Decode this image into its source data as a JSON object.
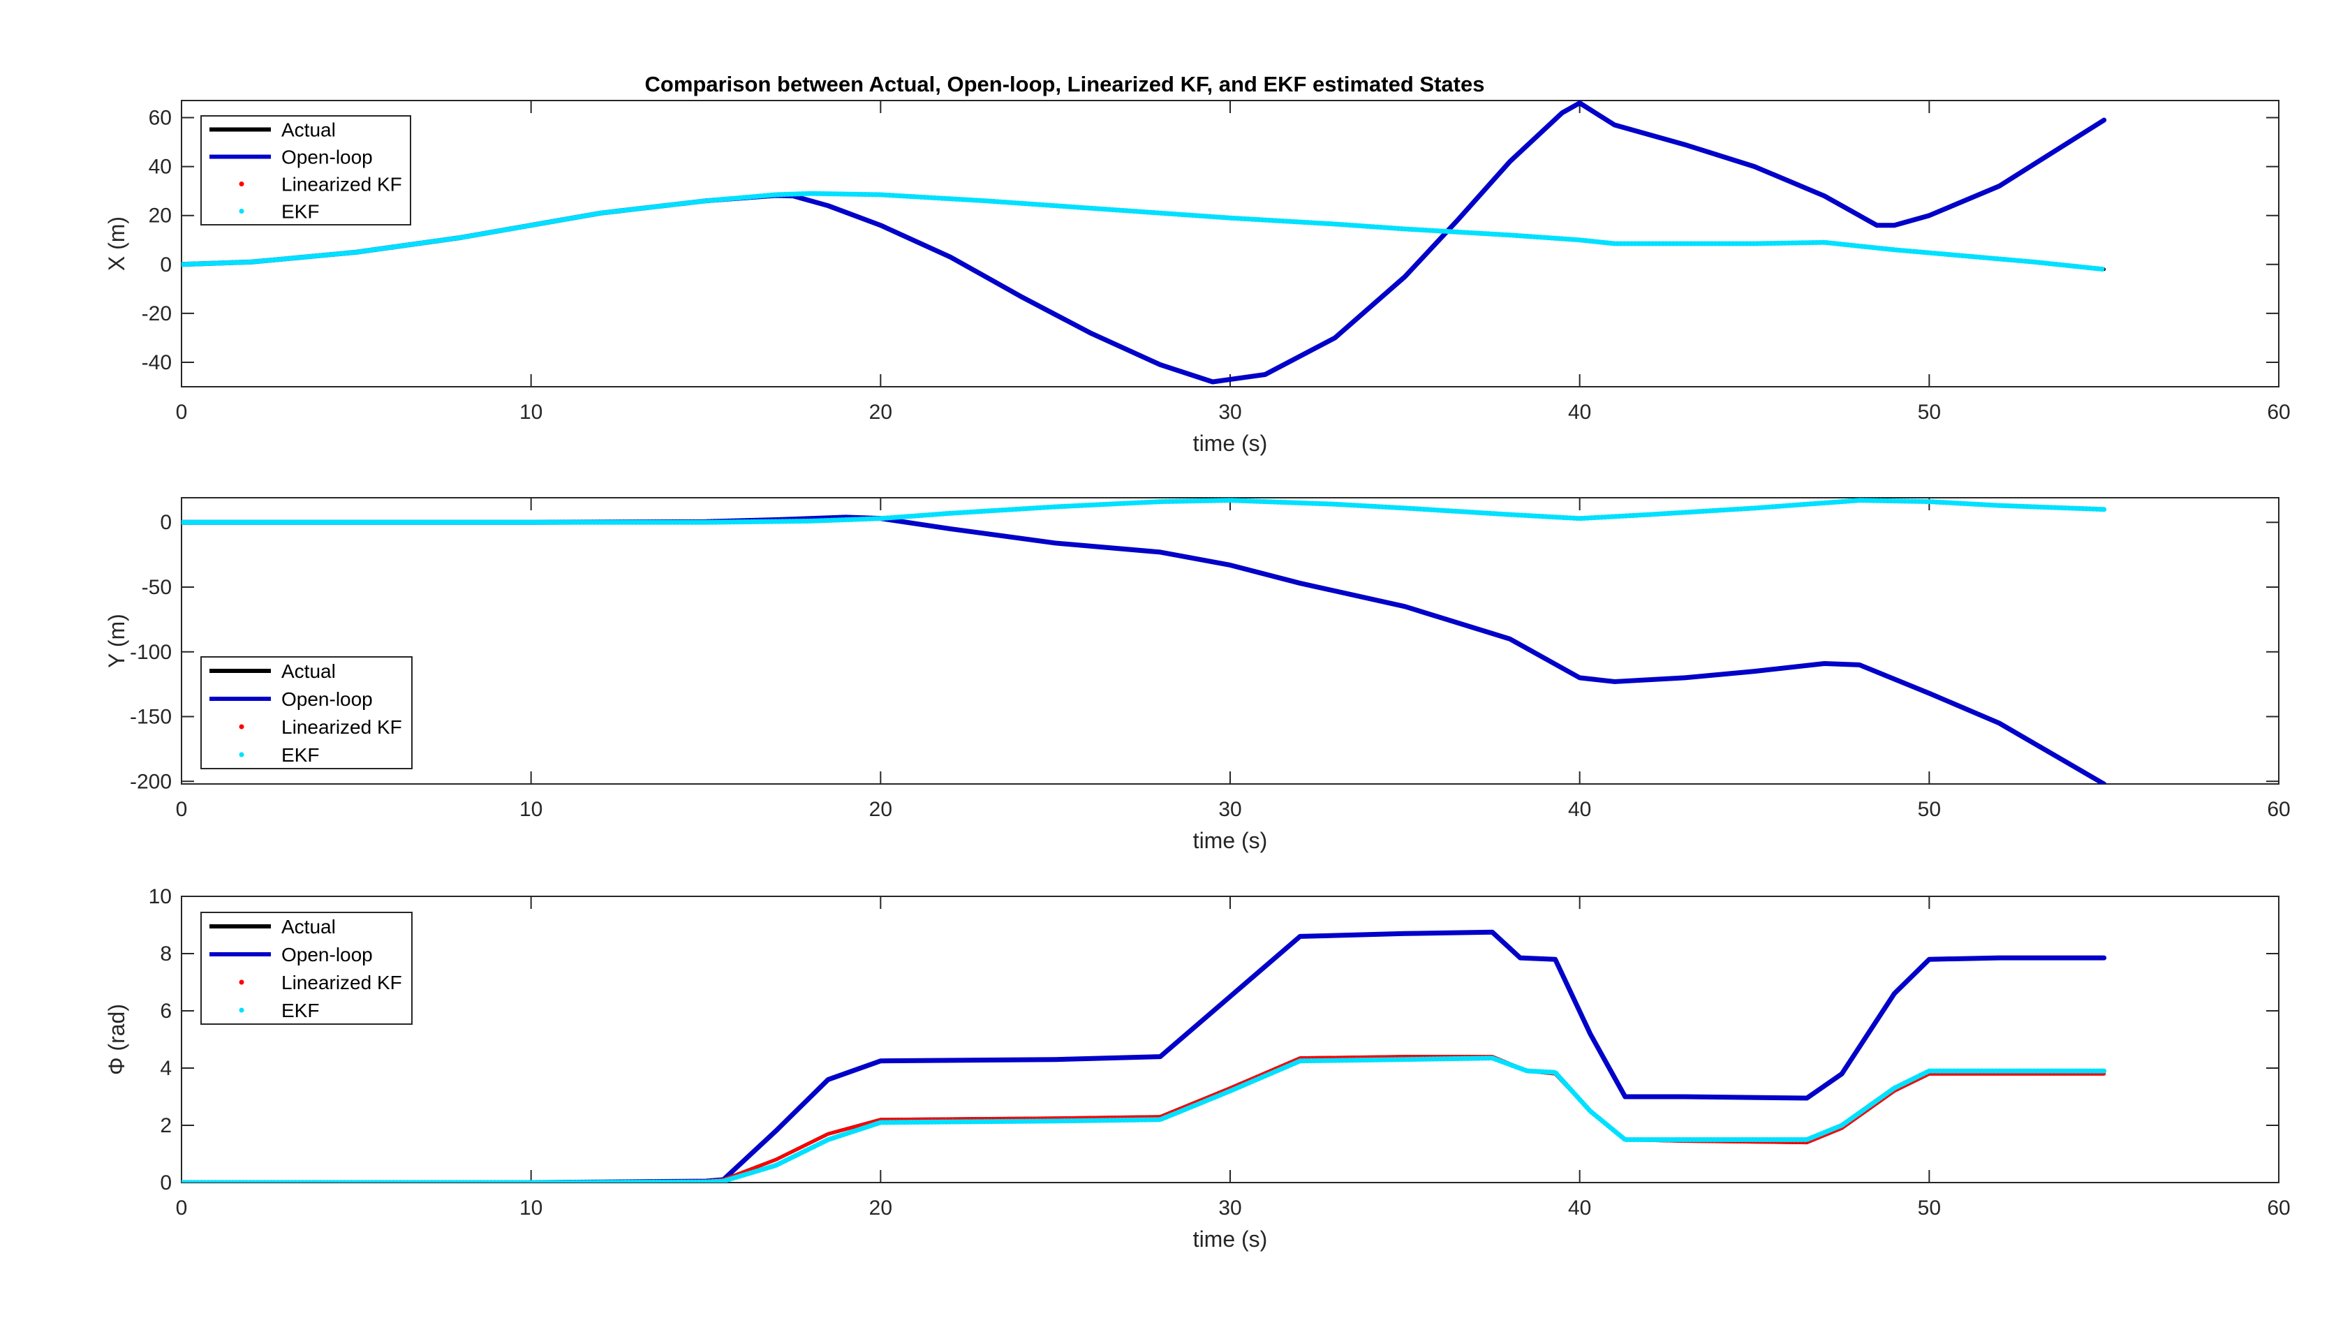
{
  "figure_title": "Comparison between Actual, Open-loop, Linearized KF, and EKF estimated States",
  "colors": {
    "actual": "#000000",
    "open_loop": "#0000c8",
    "linearized_kf": "#ff0000",
    "ekf": "#00e0ff",
    "axes": "#262626"
  },
  "chart_data": [
    {
      "type": "line",
      "title": "Comparison between Actual, Open-loop, Linearized KF, and EKF estimated States",
      "xlabel": "time (s)",
      "ylabel": "X (m)",
      "xlim": [
        0,
        60
      ],
      "ylim": [
        -50,
        67
      ],
      "xticks": [
        0,
        10,
        20,
        30,
        40,
        50,
        60
      ],
      "yticks": [
        -40,
        -20,
        0,
        20,
        40,
        60
      ],
      "legend": {
        "placement": "top-left",
        "entries": [
          "Actual",
          "Open-loop",
          "Linearized KF",
          "EKF"
        ]
      },
      "grid": false,
      "series": [
        {
          "name": "Actual",
          "style": "line",
          "color": "#000000",
          "x": [
            0,
            2,
            5,
            8,
            10,
            12,
            15,
            17,
            18,
            20,
            23,
            25,
            28,
            30,
            33,
            35,
            38,
            40,
            41,
            43,
            45,
            47,
            49,
            51,
            53,
            55
          ],
          "y": [
            0,
            1,
            5,
            11,
            16,
            21,
            26,
            28.5,
            29,
            28.5,
            26,
            24,
            21,
            19,
            16.5,
            14.5,
            12,
            10,
            8.5,
            8.5,
            8.5,
            9,
            6,
            3.5,
            1,
            -2
          ]
        },
        {
          "name": "Open-loop",
          "style": "line",
          "color": "#0000c8",
          "x": [
            0,
            2,
            5,
            8,
            10,
            12,
            15,
            17,
            17.5,
            18.5,
            20,
            22,
            24,
            26,
            28,
            29.5,
            31,
            33,
            35,
            36.5,
            38,
            39.5,
            40,
            41,
            43,
            45,
            47,
            48.5,
            49,
            50,
            52,
            55
          ],
          "y": [
            0,
            1,
            5,
            11,
            16,
            21,
            26,
            28.2,
            28,
            24,
            16,
            3,
            -13,
            -28,
            -41,
            -48,
            -45,
            -30,
            -5,
            18,
            42,
            62,
            66,
            57,
            49,
            40,
            28,
            16,
            16,
            20,
            32,
            59
          ]
        },
        {
          "name": "Linearized KF",
          "style": "dots",
          "color": "#ff0000",
          "x": [
            0,
            2,
            5,
            8,
            10,
            12,
            15,
            17,
            18,
            20,
            23,
            25,
            28,
            30,
            33,
            35,
            38,
            40,
            41,
            43,
            45,
            47,
            49,
            51,
            53,
            55
          ],
          "y": [
            0,
            1,
            5,
            11,
            16,
            21,
            26,
            28.5,
            29,
            28.5,
            26,
            24,
            21,
            19,
            16.5,
            14.5,
            12,
            10,
            8.5,
            8.5,
            8.5,
            9,
            6,
            3.5,
            1,
            -2
          ]
        },
        {
          "name": "EKF",
          "style": "dots",
          "color": "#00e0ff",
          "x": [
            0,
            2,
            5,
            8,
            10,
            12,
            15,
            17,
            18,
            20,
            23,
            25,
            28,
            30,
            33,
            35,
            38,
            40,
            41,
            43,
            45,
            47,
            49,
            51,
            53,
            55
          ],
          "y": [
            0,
            1,
            5,
            11,
            16,
            21,
            26,
            28.5,
            29,
            28.5,
            26,
            24,
            21,
            19,
            16.5,
            14.5,
            12,
            10,
            8.5,
            8.5,
            8.5,
            9,
            6,
            3.5,
            1,
            -2
          ]
        }
      ]
    },
    {
      "type": "line",
      "title": "",
      "xlabel": "time (s)",
      "ylabel": "Y (m)",
      "xlim": [
        0,
        60
      ],
      "ylim": [
        -202,
        19
      ],
      "xticks": [
        0,
        10,
        20,
        30,
        40,
        50,
        60
      ],
      "yticks": [
        -200,
        -150,
        -100,
        -50,
        0
      ],
      "legend": {
        "placement": "bottom-left",
        "entries": [
          "Actual",
          "Open-loop",
          "Linearized KF",
          "EKF"
        ]
      },
      "grid": false,
      "series": [
        {
          "name": "Actual",
          "style": "line",
          "color": "#000000",
          "x": [
            0,
            5,
            10,
            15,
            18,
            20,
            22,
            25,
            28,
            30,
            33,
            35,
            38,
            40,
            42,
            45,
            48,
            50,
            52,
            55
          ],
          "y": [
            0,
            0,
            0,
            0,
            1,
            3,
            7,
            12,
            16,
            17,
            14,
            11,
            6,
            3,
            6,
            11,
            17,
            16,
            13,
            10
          ]
        },
        {
          "name": "Open-loop",
          "style": "line",
          "color": "#0000c8",
          "x": [
            0,
            5,
            10,
            15,
            17,
            19,
            20,
            22,
            25,
            28,
            30,
            32,
            35,
            38,
            40,
            41,
            43,
            45,
            47,
            48,
            50,
            52,
            55
          ],
          "y": [
            0,
            0,
            0,
            0.5,
            2,
            4,
            3,
            -5,
            -16,
            -23,
            -33,
            -47,
            -65,
            -90,
            -120,
            -123,
            -120,
            -115,
            -109,
            -110,
            -132,
            -155,
            -202
          ]
        },
        {
          "name": "Linearized KF",
          "style": "dots",
          "color": "#ff0000",
          "x": [
            0,
            5,
            10,
            15,
            18,
            20,
            22,
            25,
            28,
            30,
            33,
            35,
            38,
            40,
            42,
            45,
            48,
            50,
            52,
            55
          ],
          "y": [
            0,
            0,
            0,
            0,
            1,
            3,
            7,
            12,
            16,
            17,
            14,
            11,
            6,
            3,
            6,
            11,
            17,
            16,
            13,
            10
          ]
        },
        {
          "name": "EKF",
          "style": "dots",
          "color": "#00e0ff",
          "x": [
            0,
            5,
            10,
            15,
            18,
            20,
            22,
            25,
            28,
            30,
            33,
            35,
            38,
            40,
            42,
            45,
            48,
            50,
            52,
            55
          ],
          "y": [
            0,
            0,
            0,
            0,
            1,
            3,
            7,
            12,
            16,
            17,
            14,
            11,
            6,
            3,
            6,
            11,
            17,
            16,
            13,
            10
          ]
        }
      ]
    },
    {
      "type": "line",
      "title": "",
      "xlabel": "time (s)",
      "ylabel": "Φ (rad)",
      "xlim": [
        0,
        60
      ],
      "ylim": [
        0,
        10
      ],
      "xticks": [
        0,
        10,
        20,
        30,
        40,
        50,
        60
      ],
      "yticks": [
        0,
        2,
        4,
        6,
        8,
        10
      ],
      "legend": {
        "placement": "top-left",
        "entries": [
          "Actual",
          "Open-loop",
          "Linearized KF",
          "EKF"
        ]
      },
      "grid": false,
      "series": [
        {
          "name": "Actual",
          "style": "line",
          "color": "#000000",
          "x": [
            0,
            10,
            15,
            15.5,
            17,
            18.5,
            20,
            25,
            28,
            30,
            32,
            35,
            37.5,
            38.5,
            39.3,
            40.3,
            41.3,
            43,
            46.5,
            47.5,
            49,
            50,
            52,
            55
          ],
          "y": [
            0,
            0,
            0.05,
            0.1,
            0.8,
            1.7,
            2.2,
            2.25,
            2.3,
            3.3,
            4.35,
            4.4,
            4.4,
            3.9,
            3.8,
            2.5,
            1.5,
            1.45,
            1.4,
            1.9,
            3.2,
            3.8,
            3.8,
            3.8
          ]
        },
        {
          "name": "Open-loop",
          "style": "line",
          "color": "#0000c8",
          "x": [
            0,
            10,
            15,
            15.5,
            17,
            18.5,
            20,
            25,
            28,
            30,
            32,
            35,
            37.5,
            38.3,
            39.3,
            40.3,
            41.3,
            43,
            46.5,
            47.5,
            49,
            50,
            52,
            55
          ],
          "y": [
            0,
            0,
            0.05,
            0.1,
            1.8,
            3.6,
            4.25,
            4.3,
            4.4,
            6.5,
            8.6,
            8.7,
            8.75,
            7.85,
            7.8,
            5.2,
            3.0,
            3.0,
            2.95,
            3.8,
            6.6,
            7.8,
            7.85,
            7.85
          ]
        },
        {
          "name": "Linearized KF",
          "style": "dots",
          "color": "#ff0000",
          "x": [
            0,
            10,
            15,
            15.5,
            17,
            18.5,
            20,
            25,
            28,
            30,
            32,
            35,
            37.5,
            38.5,
            39.3,
            40.3,
            41.3,
            43,
            46.5,
            47.5,
            49,
            50,
            52,
            55
          ],
          "y": [
            0,
            0,
            0.05,
            0.1,
            0.8,
            1.7,
            2.2,
            2.25,
            2.3,
            3.3,
            4.35,
            4.4,
            4.4,
            3.9,
            3.8,
            2.5,
            1.5,
            1.45,
            1.4,
            1.9,
            3.2,
            3.8,
            3.8,
            3.8
          ]
        },
        {
          "name": "EKF",
          "style": "dots",
          "color": "#00e0ff",
          "x": [
            0,
            10,
            15,
            15.5,
            17,
            18.5,
            20,
            25,
            28,
            30,
            32,
            35,
            37.5,
            38.5,
            39.3,
            40.3,
            41.3,
            43,
            46.5,
            47.5,
            49,
            50,
            52,
            55
          ],
          "y": [
            0,
            0,
            0.02,
            0.05,
            0.6,
            1.5,
            2.1,
            2.15,
            2.2,
            3.2,
            4.25,
            4.3,
            4.35,
            3.9,
            3.85,
            2.5,
            1.5,
            1.5,
            1.5,
            2.0,
            3.3,
            3.9,
            3.9,
            3.9
          ]
        }
      ]
    }
  ]
}
